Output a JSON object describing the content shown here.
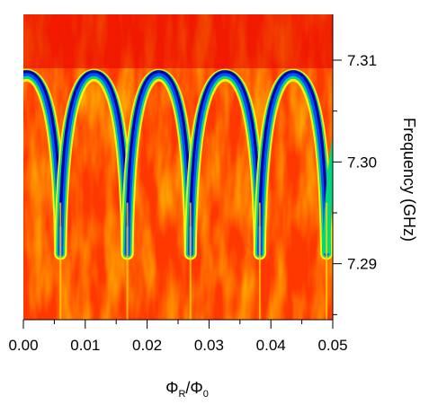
{
  "chart_data": {
    "type": "heatmap",
    "x_axis": {
      "label_main": "Φ",
      "label_sub1": "R",
      "label_slash": "/Φ",
      "label_sub2": "0",
      "range": [
        0.0,
        0.05
      ],
      "ticks": [
        0.0,
        0.01,
        0.02,
        0.03,
        0.04,
        0.05
      ],
      "tick_labels": [
        "0.00",
        "0.01",
        "0.02",
        "0.03",
        "0.04",
        "0.05"
      ]
    },
    "y_axis": {
      "label": "Frequency (GHz)",
      "position": "right",
      "range": [
        7.2845,
        7.3145
      ],
      "ticks": [
        7.29,
        7.3,
        7.31
      ],
      "tick_labels": [
        "7.29",
        "7.30",
        "7.31"
      ]
    },
    "colormap": [
      "#dc0000",
      "#ff3c00",
      "#ff7800",
      "#ffb400",
      "#ffff00",
      "#00e070",
      "#00c8ff",
      "#0040ff",
      "#0000a0"
    ],
    "series": [
      {
        "resonance_peak_frequencies_GHz": [
          7.3087,
          7.3087,
          7.3087,
          7.3087,
          7.3087
        ],
        "arch_centers": [
          0.0005,
          0.0112,
          0.0222,
          0.0328,
          0.0436
        ],
        "dip_positions": [
          0.006,
          0.0168,
          0.027,
          0.0382,
          0.049
        ],
        "dip_bottom_frequency_GHz": 7.291
      }
    ]
  }
}
